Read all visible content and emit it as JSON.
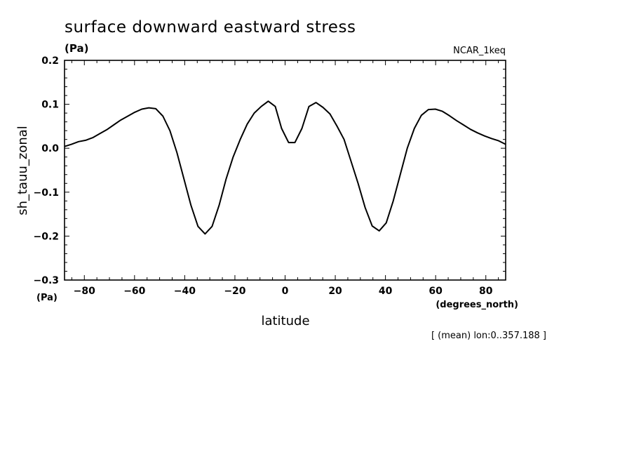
{
  "chart_data": {
    "type": "line",
    "title": "surface downward eastward stress",
    "title_units": "(Pa)",
    "dataset": "NCAR_1keq",
    "xlabel": "latitude",
    "xunits": "(degrees_north)",
    "ylabel": "sh_tauu_zonal",
    "yunits": "(Pa)",
    "note": "[ (mean) lon:0..357.188 ]",
    "xlim": [
      -87.9,
      87.9
    ],
    "ylim": [
      -0.3,
      0.2
    ],
    "xticks": [
      -80,
      -60,
      -40,
      -20,
      0,
      20,
      40,
      60,
      80
    ],
    "xtick_labels": [
      "−80",
      "−60",
      "−40",
      "−20",
      "0",
      "20",
      "40",
      "60",
      "80"
    ],
    "yticks": [
      0.2,
      0.1,
      0.0,
      -0.1,
      -0.2,
      -0.3
    ],
    "ytick_labels": [
      "0.2",
      "0.1",
      "0.0",
      "−0.1",
      "−0.2",
      "−0.3"
    ],
    "grid": false,
    "series": [
      {
        "color": "#000000",
        "x": [
          -87.9,
          -85.1,
          -82.3,
          -79.5,
          -76.7,
          -73.9,
          -71.1,
          -68.3,
          -65.5,
          -62.7,
          -59.9,
          -57.1,
          -54.3,
          -51.5,
          -48.7,
          -45.9,
          -43.1,
          -40.3,
          -37.5,
          -34.7,
          -31.9,
          -29.1,
          -26.3,
          -23.5,
          -20.7,
          -17.9,
          -15.1,
          -12.3,
          -9.5,
          -6.7,
          -3.9,
          -1.4,
          1.4,
          3.9,
          6.7,
          9.5,
          12.3,
          15.1,
          17.9,
          20.7,
          23.5,
          26.3,
          29.1,
          31.9,
          34.7,
          37.5,
          40.3,
          43.1,
          45.9,
          48.7,
          51.5,
          54.3,
          57.1,
          59.9,
          62.7,
          65.5,
          68.3,
          71.1,
          73.9,
          76.7,
          79.5,
          82.3,
          85.1,
          87.9
        ],
        "y": [
          0.004,
          0.009,
          0.015,
          0.018,
          0.024,
          0.033,
          0.042,
          0.053,
          0.064,
          0.073,
          0.082,
          0.089,
          0.092,
          0.09,
          0.073,
          0.04,
          -0.01,
          -0.07,
          -0.13,
          -0.178,
          -0.195,
          -0.178,
          -0.13,
          -0.07,
          -0.02,
          0.02,
          0.055,
          0.08,
          0.095,
          0.107,
          0.095,
          0.045,
          0.013,
          0.013,
          0.045,
          0.095,
          0.104,
          0.093,
          0.078,
          0.05,
          0.02,
          -0.03,
          -0.08,
          -0.135,
          -0.177,
          -0.188,
          -0.17,
          -0.12,
          -0.06,
          0.0,
          0.045,
          0.075,
          0.088,
          0.089,
          0.084,
          0.074,
          0.063,
          0.053,
          0.043,
          0.035,
          0.028,
          0.022,
          0.017,
          0.009
        ]
      }
    ]
  }
}
